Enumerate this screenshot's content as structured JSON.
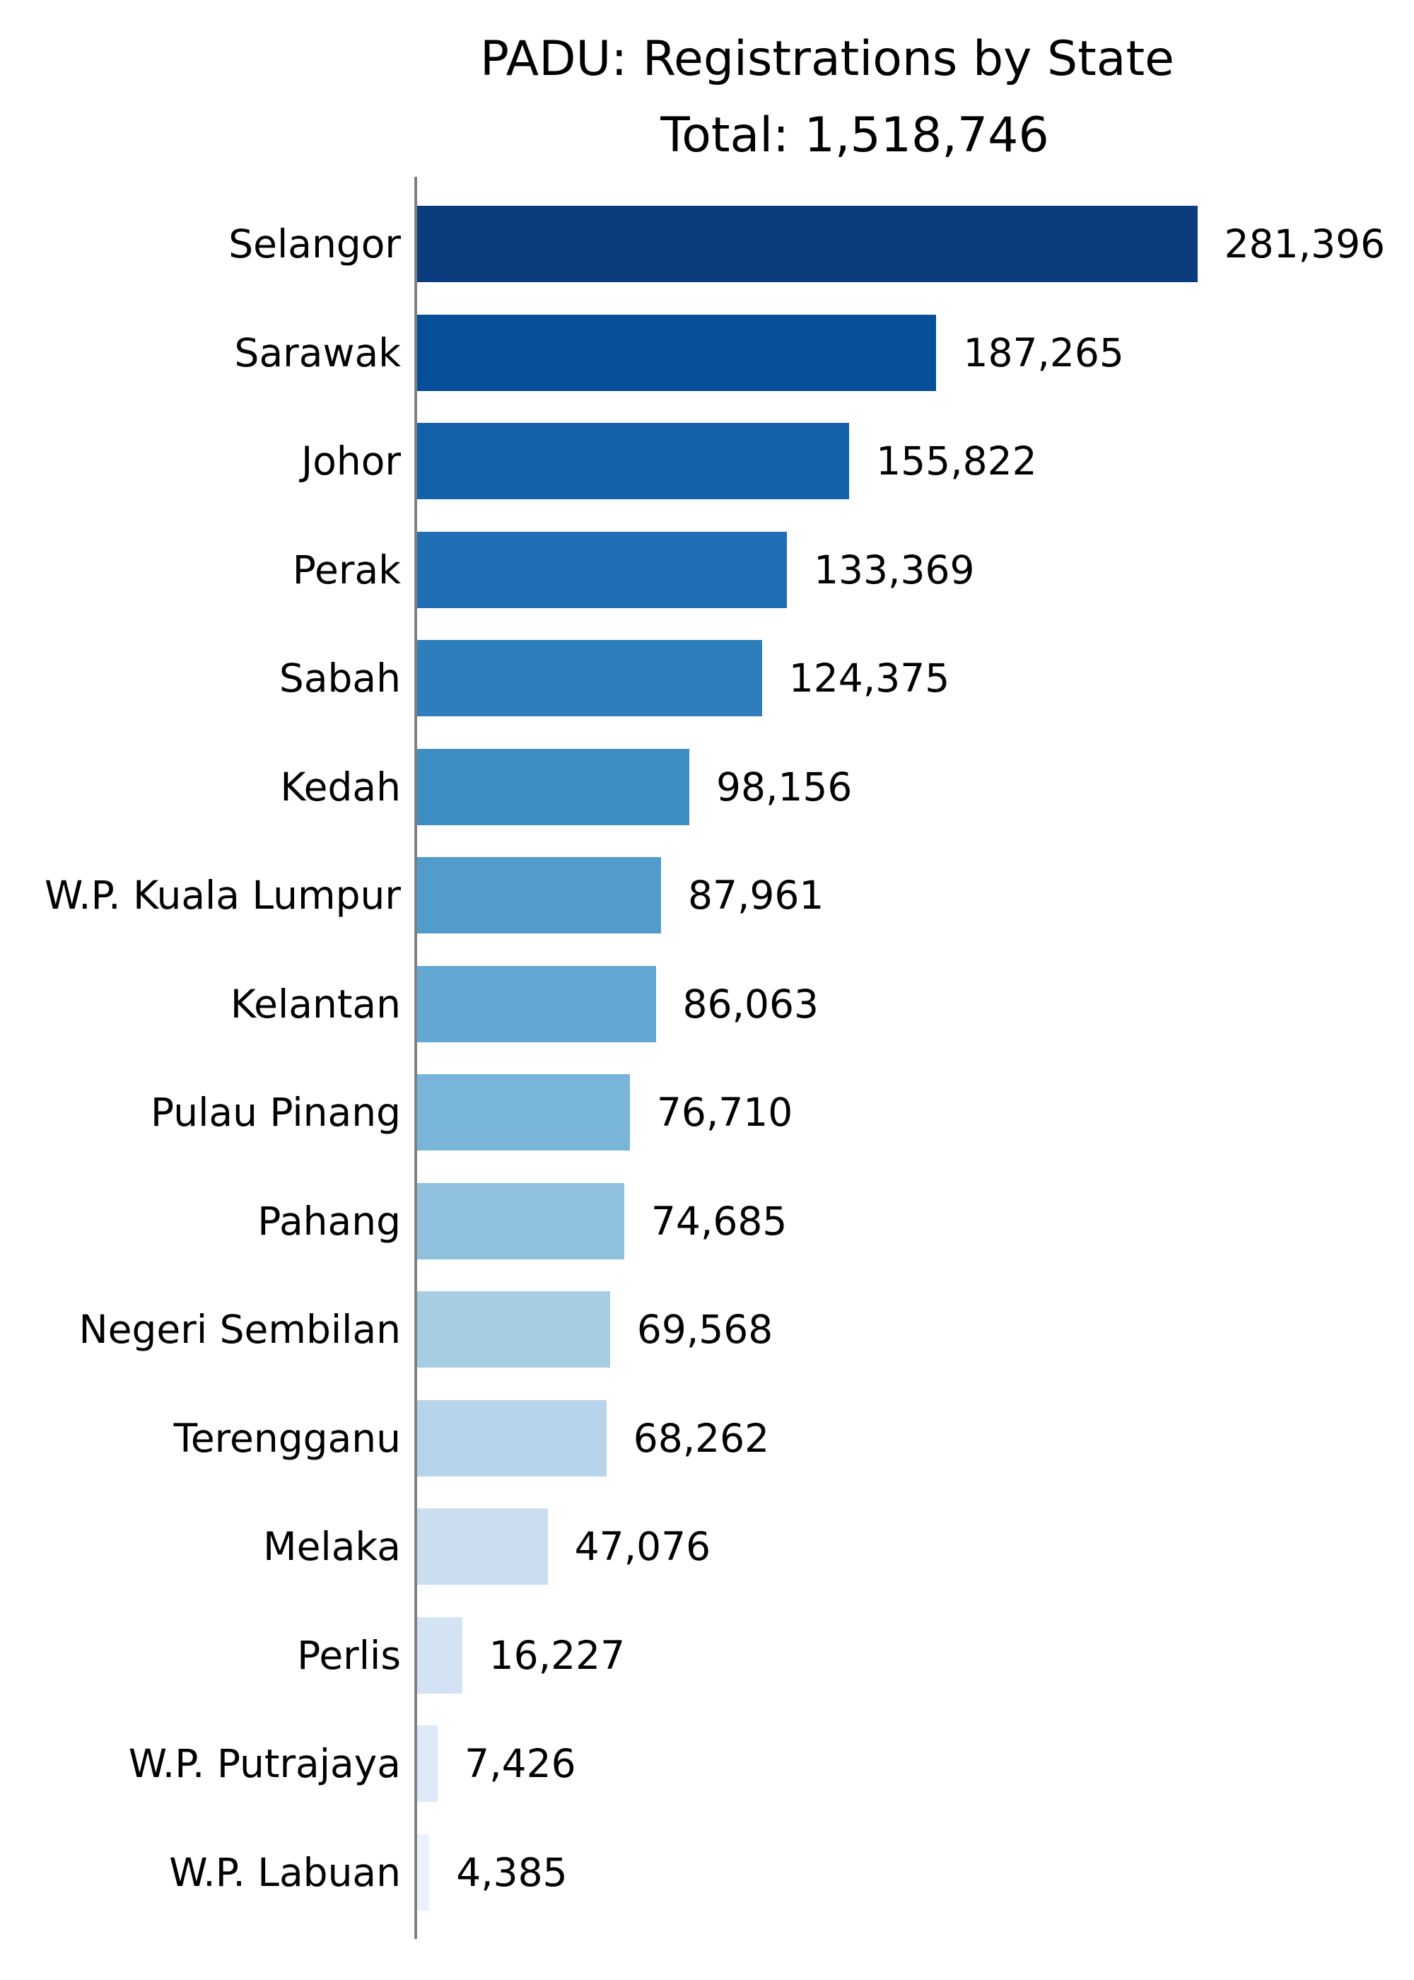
{
  "chart_data": {
    "type": "bar",
    "orientation": "horizontal",
    "title": "PADU: Registrations by State",
    "subtitle": "Total: 1,518,746",
    "xlabel": "",
    "ylabel": "",
    "grid": false,
    "legend": null,
    "categories": [
      "Selangor",
      "Sarawak",
      "Johor",
      "Perak",
      "Sabah",
      "Kedah",
      "W.P. Kuala Lumpur",
      "Kelantan",
      "Pulau Pinang",
      "Pahang",
      "Negeri Sembilan",
      "Terengganu",
      "Melaka",
      "Perlis",
      "W.P. Putrajaya",
      "W.P. Labuan"
    ],
    "values": [
      281396,
      187265,
      155822,
      133369,
      124375,
      98156,
      87961,
      86063,
      76710,
      74685,
      69568,
      68262,
      47076,
      16227,
      7426,
      4385
    ],
    "value_labels": [
      "281,396",
      "187,265",
      "155,822",
      "133,369",
      "124,375",
      "98,156",
      "87,961",
      "86,063",
      "76,710",
      "74,685",
      "69,568",
      "68,262",
      "47,076",
      "16,227",
      "7,426",
      "4,385"
    ],
    "colors": [
      "#0b3d7e",
      "#084f99",
      "#1361a9",
      "#206fb4",
      "#2f7ebc",
      "#3e8ec4",
      "#519ccc",
      "#63a8d3",
      "#79b5d9",
      "#8fc1de",
      "#a6cde2",
      "#b7d4ea",
      "#cadef0",
      "#d3e3f3",
      "#dde9f6",
      "#e9f2fb"
    ],
    "colormap": "Blues (reversed by rank)",
    "axis_color": "#808080"
  },
  "header": {
    "title": "PADU: Registrations by State",
    "total": "Total: 1,518,746"
  }
}
